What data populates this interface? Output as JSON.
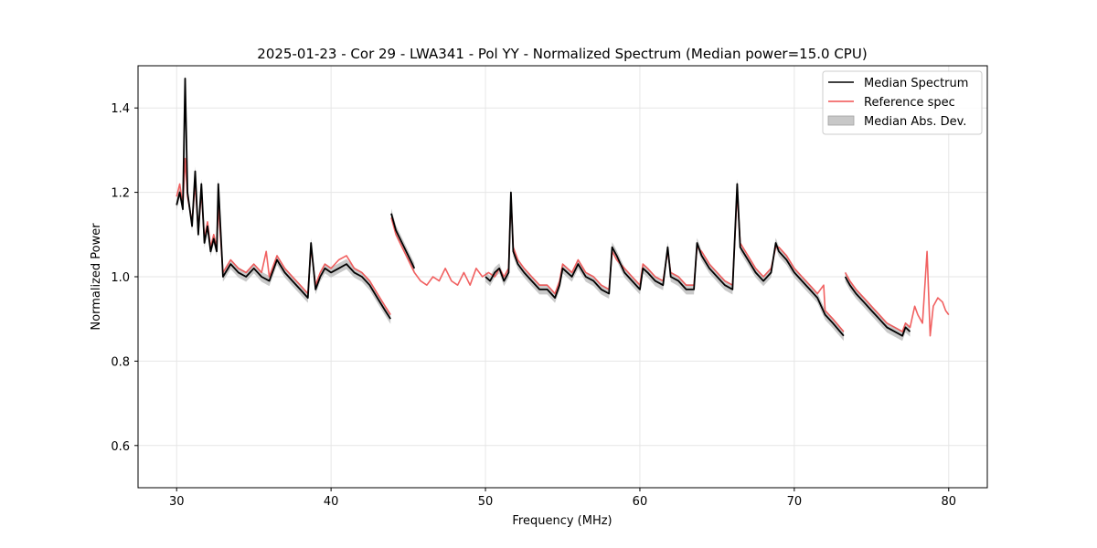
{
  "chart_data": {
    "type": "line",
    "title": "2025-01-23 - Cor 29 - LWA341 - Pol YY - Normalized Spectrum (Median power=15.0 CPU)",
    "xlabel": "Frequency (MHz)",
    "ylabel": "Normalized Power",
    "xlim": [
      27.5,
      82.5
    ],
    "ylim": [
      0.5,
      1.5
    ],
    "xticks": [
      30,
      40,
      50,
      60,
      70,
      80
    ],
    "yticks": [
      0.6,
      0.8,
      1.0,
      1.2,
      1.4
    ],
    "grid": true,
    "legend_position": "top-right",
    "legend": [
      {
        "label": "Median Spectrum",
        "kind": "line",
        "color": "#000000"
      },
      {
        "label": "Reference spec",
        "kind": "line",
        "color": "#f05050"
      },
      {
        "label": "Median Abs. Dev.",
        "kind": "band",
        "color": "#c0c0c0"
      }
    ],
    "series": [
      {
        "name": "Median Spectrum",
        "color": "#000000",
        "segments": [
          {
            "x": [
              30.0,
              30.2,
              30.4,
              30.55,
              30.7,
              31.0,
              31.2,
              31.4,
              31.6,
              31.8,
              32.0,
              32.2,
              32.4,
              32.6,
              32.7,
              33.0,
              33.5,
              34.0,
              34.5,
              35.0,
              35.5,
              36.0,
              36.5,
              37.0,
              37.5,
              38.0,
              38.5,
              38.7,
              39.0,
              39.3,
              39.6,
              40.0,
              40.5,
              41.0,
              41.5,
              42.0,
              42.5,
              43.0,
              43.5,
              43.85
            ],
            "y": [
              1.17,
              1.2,
              1.16,
              1.47,
              1.2,
              1.12,
              1.25,
              1.1,
              1.22,
              1.08,
              1.12,
              1.06,
              1.09,
              1.06,
              1.22,
              1.0,
              1.03,
              1.01,
              1.0,
              1.02,
              1.0,
              0.99,
              1.04,
              1.01,
              0.99,
              0.97,
              0.95,
              1.08,
              0.97,
              1.0,
              1.02,
              1.01,
              1.02,
              1.03,
              1.01,
              1.0,
              0.98,
              0.95,
              0.92,
              0.9
            ]
          },
          {
            "x": [
              43.9,
              44.2,
              44.6,
              45.0,
              45.4
            ],
            "y": [
              1.15,
              1.11,
              1.08,
              1.05,
              1.02
            ]
          },
          {
            "x": [
              50.0,
              50.3,
              50.6,
              50.9,
              51.2,
              51.5,
              51.65,
              51.8,
              52.1,
              52.5,
              53.0,
              53.5,
              54.0,
              54.5,
              54.8,
              55.0,
              55.3,
              55.6,
              56.0,
              56.5,
              57.0,
              57.5,
              58.0,
              58.2,
              58.5,
              59.0,
              59.5,
              60.0,
              60.2,
              60.5,
              61.0,
              61.5,
              61.8,
              62.0,
              62.5,
              63.0,
              63.5,
              63.7,
              64.0,
              64.5,
              65.0,
              65.5,
              66.0,
              66.3,
              66.5,
              67.0,
              67.5,
              68.0,
              68.5,
              68.8,
              69.0,
              69.5,
              70.0,
              70.5,
              71.0,
              71.5,
              72.0,
              72.5,
              73.2
            ],
            "y": [
              1.0,
              0.99,
              1.01,
              1.02,
              0.99,
              1.01,
              1.2,
              1.06,
              1.03,
              1.01,
              0.99,
              0.97,
              0.97,
              0.95,
              0.98,
              1.02,
              1.01,
              1.0,
              1.03,
              1.0,
              0.99,
              0.97,
              0.96,
              1.07,
              1.05,
              1.01,
              0.99,
              0.97,
              1.02,
              1.01,
              0.99,
              0.98,
              1.07,
              1.0,
              0.99,
              0.97,
              0.97,
              1.08,
              1.05,
              1.02,
              1.0,
              0.98,
              0.97,
              1.22,
              1.07,
              1.04,
              1.01,
              0.99,
              1.01,
              1.08,
              1.06,
              1.04,
              1.01,
              0.99,
              0.97,
              0.95,
              0.91,
              0.89,
              0.86
            ]
          },
          {
            "x": [
              73.3,
              73.6,
              74.0,
              74.5,
              75.0,
              75.5,
              76.0,
              76.5,
              77.0,
              77.2,
              77.5
            ],
            "y": [
              1.0,
              0.98,
              0.96,
              0.94,
              0.92,
              0.9,
              0.88,
              0.87,
              0.86,
              0.88,
              0.87
            ]
          }
        ]
      },
      {
        "name": "Reference spec",
        "color": "#f05050",
        "segments": [
          {
            "x": [
              30.0,
              30.2,
              30.4,
              30.55,
              30.7,
              31.0,
              31.2,
              31.4,
              31.6,
              31.8,
              32.0,
              32.2,
              32.4,
              32.6,
              32.7,
              33.0,
              33.5,
              34.0,
              34.5,
              35.0,
              35.5,
              35.8,
              36.0,
              36.5,
              37.0,
              37.5,
              38.0,
              38.5,
              38.7,
              39.0,
              39.3,
              39.6,
              40.0,
              40.5,
              41.0,
              41.5,
              42.0,
              42.5,
              43.0,
              43.5,
              43.85
            ],
            "y": [
              1.19,
              1.22,
              1.17,
              1.28,
              1.19,
              1.13,
              1.22,
              1.11,
              1.2,
              1.09,
              1.13,
              1.07,
              1.1,
              1.07,
              1.17,
              1.01,
              1.04,
              1.02,
              1.01,
              1.03,
              1.01,
              1.06,
              1.0,
              1.05,
              1.02,
              1.0,
              0.98,
              0.96,
              1.07,
              0.98,
              1.01,
              1.03,
              1.02,
              1.04,
              1.05,
              1.02,
              1.01,
              0.99,
              0.96,
              0.93,
              0.91
            ]
          },
          {
            "x": [
              43.9,
              44.2,
              44.6,
              45.0,
              45.4,
              45.8,
              46.2,
              46.6,
              47.0,
              47.4,
              47.8,
              48.2,
              48.6,
              49.0,
              49.4,
              49.8,
              50.2,
              50.6,
              50.9,
              51.2,
              51.5,
              51.65,
              51.8,
              52.1,
              52.5,
              53.0,
              53.5,
              54.0,
              54.5,
              54.8,
              55.0,
              55.3,
              55.6,
              56.0,
              56.5,
              57.0,
              57.5,
              58.0,
              58.2,
              58.5,
              59.0,
              59.5,
              60.0,
              60.2,
              60.5,
              61.0,
              61.5,
              61.8,
              62.0,
              62.5,
              63.0,
              63.5,
              63.7,
              64.0,
              64.5,
              65.0,
              65.5,
              66.0,
              66.3,
              66.5,
              67.0,
              67.5,
              68.0,
              68.5,
              68.8,
              69.0,
              69.5,
              70.0,
              70.5,
              71.0,
              71.5,
              71.9,
              72.0,
              72.5,
              73.2
            ],
            "y": [
              1.14,
              1.1,
              1.07,
              1.04,
              1.01,
              0.99,
              0.98,
              1.0,
              0.99,
              1.02,
              0.99,
              0.98,
              1.01,
              0.98,
              1.02,
              1.0,
              1.01,
              1.0,
              1.02,
              1.0,
              1.02,
              1.19,
              1.07,
              1.04,
              1.02,
              1.0,
              0.98,
              0.98,
              0.96,
              0.99,
              1.03,
              1.02,
              1.01,
              1.04,
              1.01,
              1.0,
              0.98,
              0.97,
              1.06,
              1.04,
              1.02,
              1.0,
              0.98,
              1.03,
              1.02,
              1.0,
              0.99,
              1.06,
              1.01,
              1.0,
              0.98,
              0.98,
              1.07,
              1.06,
              1.03,
              1.01,
              0.99,
              0.98,
              1.2,
              1.08,
              1.05,
              1.02,
              1.0,
              1.02,
              1.07,
              1.07,
              1.05,
              1.02,
              1.0,
              0.98,
              0.96,
              0.98,
              0.92,
              0.9,
              0.87
            ]
          },
          {
            "x": [
              73.3,
              73.6,
              74.0,
              74.5,
              75.0,
              75.5,
              76.0,
              76.5,
              77.0,
              77.2,
              77.5,
              77.8,
              78.0,
              78.3,
              78.6,
              78.8,
              79.0,
              79.3,
              79.6,
              79.8,
              80.0
            ],
            "y": [
              1.01,
              0.99,
              0.97,
              0.95,
              0.93,
              0.91,
              0.89,
              0.88,
              0.87,
              0.89,
              0.88,
              0.93,
              0.91,
              0.89,
              1.06,
              0.86,
              0.93,
              0.95,
              0.94,
              0.92,
              0.91
            ]
          }
        ]
      }
    ],
    "mad_band": {
      "name": "Median Abs. Dev.",
      "color": "#c0c0c0",
      "halfwidth": 0.012
    }
  }
}
